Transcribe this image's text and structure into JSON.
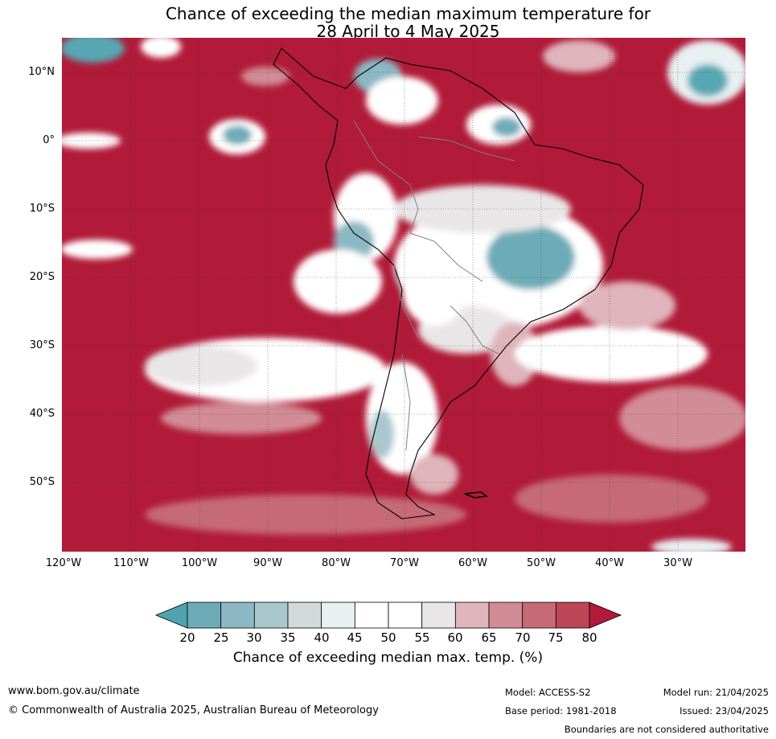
{
  "title": {
    "line1": "Chance of exceeding the median maximum temperature for",
    "line2": "28 April to 4 May 2025"
  },
  "map": {
    "region": "South America and surrounding oceans",
    "lat_labels": [
      "10°N",
      "0°",
      "10°S",
      "20°S",
      "30°S",
      "40°S",
      "50°S"
    ],
    "lon_labels": [
      "120°W",
      "110°W",
      "100°W",
      "90°W",
      "80°W",
      "70°W",
      "60°W",
      "50°W",
      "40°W",
      "30°W"
    ],
    "dominant_category": "above 80%",
    "colors": {
      "ocean_fill": "#b11a38",
      "neutral_fill": "#ffffff",
      "cool_fill": "#56a7b3",
      "coastline": "#000000",
      "borders": "#808080",
      "gridlines": "#3a3a3a"
    }
  },
  "colorbar": {
    "label": "Chance of exceeding median max. temp. (%)",
    "ticks": [
      "20",
      "25",
      "30",
      "35",
      "40",
      "45",
      "50",
      "55",
      "60",
      "65",
      "70",
      "75",
      "80"
    ],
    "colors": [
      "#4fa3b0",
      "#6dabb7",
      "#8bb8c3",
      "#a9c7cc",
      "#d3d8da",
      "#e8f0f2",
      "#ffffff",
      "#ffffff",
      "#e9e6e7",
      "#dfb4bb",
      "#d28c96",
      "#c66a76",
      "#bd4656",
      "#b11a38"
    ]
  },
  "footer": {
    "website": "www.bom.gov.au/climate",
    "copyright": "© Commonwealth of Australia 2025, Australian Bureau of Meteorology",
    "model": "Model: ACCESS-S2",
    "base_period": "Base period: 1981-2018",
    "model_run": "Model run: 21/04/2025",
    "issued": "Issued: 23/04/2025",
    "disclaimer": "Boundaries are not considered authoritative"
  }
}
